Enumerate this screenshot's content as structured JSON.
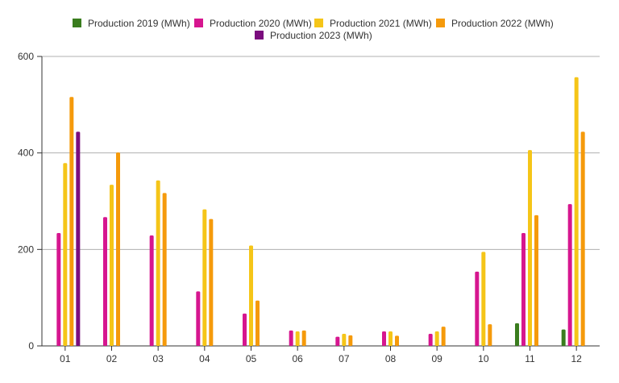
{
  "chart_data": {
    "type": "bar",
    "categories": [
      "01",
      "02",
      "03",
      "04",
      "05",
      "06",
      "07",
      "08",
      "09",
      "10",
      "11",
      "12"
    ],
    "series": [
      {
        "name": "Production 2019 (MWh)",
        "color": "#3a7d1e",
        "values": [
          null,
          null,
          null,
          null,
          null,
          null,
          null,
          null,
          null,
          null,
          47,
          34
        ]
      },
      {
        "name": "Production 2020 (MWh)",
        "color": "#d6168f",
        "values": [
          234,
          267,
          229,
          113,
          67,
          32,
          19,
          30,
          25,
          154,
          234,
          294
        ]
      },
      {
        "name": "Production 2021 (MWh)",
        "color": "#f5c518",
        "values": [
          379,
          334,
          343,
          283,
          208,
          30,
          25,
          30,
          30,
          195,
          406,
          557
        ]
      },
      {
        "name": "Production 2022 (MWh)",
        "color": "#f59a0b",
        "values": [
          516,
          401,
          317,
          263,
          94,
          32,
          22,
          21,
          40,
          45,
          271,
          444
        ]
      },
      {
        "name": "Production 2023 (MWh)",
        "color": "#7b0d7e",
        "values": [
          444,
          null,
          null,
          null,
          null,
          null,
          null,
          null,
          null,
          null,
          null,
          null
        ]
      }
    ],
    "yticks": [
      0,
      200,
      400,
      600
    ],
    "ylim": [
      0,
      600
    ],
    "grid": true,
    "legend_position": "top-center"
  }
}
